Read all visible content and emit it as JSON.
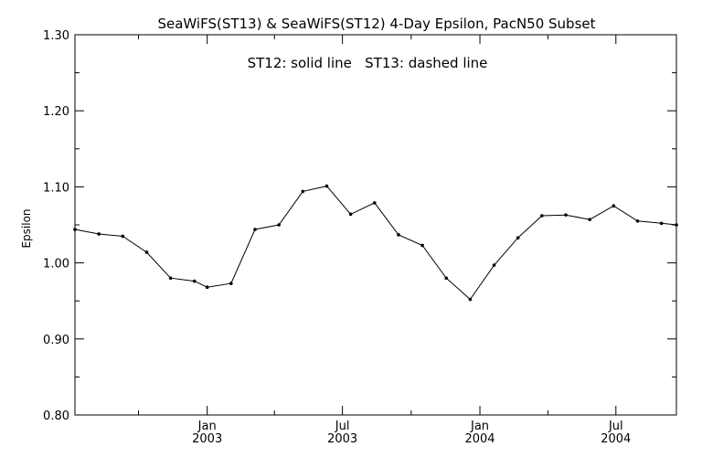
{
  "chart_data": {
    "type": "line",
    "title": "SeaWiFS(ST13) & SeaWiFS(ST12) 4-Day Epsilon, PacN50 Subset",
    "annotation": "ST12: solid line   ST13: dashed line",
    "xlabel": "",
    "ylabel": "Epsilon",
    "ylim": [
      0.8,
      1.3
    ],
    "yticks": [
      "0.80",
      "0.90",
      "1.00",
      "1.10",
      "1.20",
      "1.30"
    ],
    "xlim": [
      "2002-07-08",
      "2004-09-20"
    ],
    "xticks": [
      {
        "date": "2003-01-01",
        "month": "Jan",
        "year": "2003"
      },
      {
        "date": "2003-07-01",
        "month": "Jul",
        "year": "2003"
      },
      {
        "date": "2004-01-01",
        "month": "Jan",
        "year": "2004"
      },
      {
        "date": "2004-07-01",
        "month": "Jul",
        "year": "2004"
      }
    ],
    "xminor": [
      "2002-10-01",
      "2003-04-01",
      "2003-10-01",
      "2004-04-01"
    ],
    "grid": false,
    "series": [
      {
        "line_style": "solid",
        "x": [
          "2002-07-08",
          "2002-08-09",
          "2002-09-10",
          "2002-10-12",
          "2002-11-13",
          "2002-12-15",
          "2003-01-01",
          "2003-02-02",
          "2003-03-06",
          "2003-04-07",
          "2003-05-09",
          "2003-06-10",
          "2003-07-12",
          "2003-08-13",
          "2003-09-14",
          "2003-10-16",
          "2003-11-17",
          "2003-12-19",
          "2004-01-20",
          "2004-02-21",
          "2004-03-24",
          "2004-04-25",
          "2004-05-27",
          "2004-06-28",
          "2004-07-30",
          "2004-08-31",
          "2004-09-20"
        ],
        "y": [
          1.044,
          1.038,
          1.035,
          1.014,
          0.98,
          0.976,
          0.968,
          0.973,
          1.044,
          1.05,
          1.094,
          1.101,
          1.064,
          1.079,
          1.037,
          1.023,
          0.98,
          0.952,
          0.997,
          1.033,
          1.062,
          1.063,
          1.057,
          1.075,
          1.055,
          1.052,
          1.05
        ]
      }
    ]
  }
}
